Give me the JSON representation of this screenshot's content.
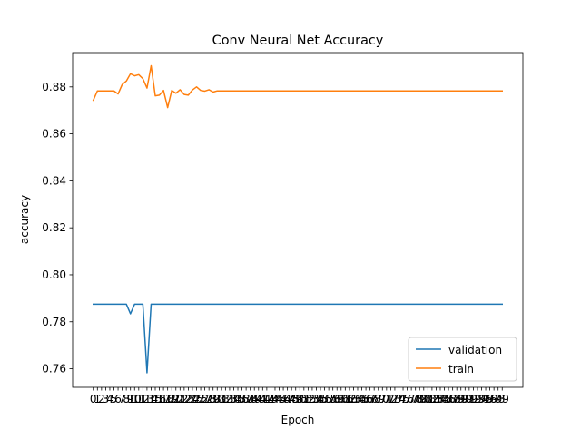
{
  "chart_data": {
    "type": "line",
    "title": "Conv Neural Net Accuracy",
    "xlabel": "Epoch",
    "ylabel": "accuracy",
    "x": [
      0,
      1,
      2,
      3,
      4,
      5,
      6,
      7,
      8,
      9,
      10,
      11,
      12,
      13,
      14,
      15,
      16,
      17,
      18,
      19,
      20,
      21,
      22,
      23,
      24,
      25,
      26,
      27,
      28,
      29,
      30,
      31,
      32,
      33,
      34,
      35,
      36,
      37,
      38,
      39,
      40,
      41,
      42,
      43,
      44,
      45,
      46,
      47,
      48,
      49,
      50,
      51,
      52,
      53,
      54,
      55,
      56,
      57,
      58,
      59,
      60,
      61,
      62,
      63,
      64,
      65,
      66,
      67,
      68,
      69,
      70,
      71,
      72,
      73,
      74,
      75,
      76,
      77,
      78,
      79,
      80,
      81,
      82,
      83,
      84,
      85,
      86,
      87,
      88,
      89,
      90,
      91,
      92,
      93,
      94,
      95,
      96,
      97,
      98,
      99
    ],
    "xlim": [
      -5,
      104
    ],
    "ylim": [
      0.7521,
      0.8946
    ],
    "yticks": [
      0.76,
      0.78,
      0.8,
      0.82,
      0.84,
      0.86,
      0.88
    ],
    "ytick_labels": [
      "0.76",
      "0.78",
      "0.80",
      "0.82",
      "0.84",
      "0.86",
      "0.88"
    ],
    "grid": false,
    "legend_position": "lower-right",
    "series": [
      {
        "name": "validation",
        "color": "#1f77b4",
        "values": [
          0.7875,
          0.7875,
          0.7875,
          0.7875,
          0.7875,
          0.7875,
          0.7875,
          0.7875,
          0.7875,
          0.7834,
          0.7875,
          0.7875,
          0.7875,
          0.7583,
          0.7875,
          0.7875,
          0.7875,
          0.7875,
          0.7875,
          0.7875,
          0.7875,
          0.7875,
          0.7875,
          0.7875,
          0.7875,
          0.7875,
          0.7875,
          0.7875,
          0.7875,
          0.7875,
          0.7875,
          0.7875,
          0.7875,
          0.7875,
          0.7875,
          0.7875,
          0.7875,
          0.7875,
          0.7875,
          0.7875,
          0.7875,
          0.7875,
          0.7875,
          0.7875,
          0.7875,
          0.7875,
          0.7875,
          0.7875,
          0.7875,
          0.7875,
          0.7875,
          0.7875,
          0.7875,
          0.7875,
          0.7875,
          0.7875,
          0.7875,
          0.7875,
          0.7875,
          0.7875,
          0.7875,
          0.7875,
          0.7875,
          0.7875,
          0.7875,
          0.7875,
          0.7875,
          0.7875,
          0.7875,
          0.7875,
          0.7875,
          0.7875,
          0.7875,
          0.7875,
          0.7875,
          0.7875,
          0.7875,
          0.7875,
          0.7875,
          0.7875,
          0.7875,
          0.7875,
          0.7875,
          0.7875,
          0.7875,
          0.7875,
          0.7875,
          0.7875,
          0.7875,
          0.7875,
          0.7875,
          0.7875,
          0.7875,
          0.7875,
          0.7875,
          0.7875,
          0.7875,
          0.7875,
          0.7875,
          0.7875
        ]
      },
      {
        "name": "train",
        "color": "#ff7f0e",
        "values": [
          0.8743,
          0.8783,
          0.8783,
          0.8783,
          0.8783,
          0.8783,
          0.877,
          0.881,
          0.8825,
          0.8856,
          0.8847,
          0.8852,
          0.8835,
          0.8795,
          0.889,
          0.8762,
          0.8765,
          0.8785,
          0.8712,
          0.8785,
          0.8773,
          0.8788,
          0.8768,
          0.8765,
          0.8787,
          0.88,
          0.8785,
          0.8782,
          0.8788,
          0.8778,
          0.8783,
          0.8783,
          0.8783,
          0.8783,
          0.8783,
          0.8783,
          0.8783,
          0.8783,
          0.8783,
          0.8783,
          0.8783,
          0.8783,
          0.8783,
          0.8783,
          0.8783,
          0.8783,
          0.8783,
          0.8783,
          0.8783,
          0.8783,
          0.8783,
          0.8783,
          0.8783,
          0.8783,
          0.8783,
          0.8783,
          0.8783,
          0.8783,
          0.8783,
          0.8783,
          0.8783,
          0.8783,
          0.8783,
          0.8783,
          0.8783,
          0.8783,
          0.8783,
          0.8783,
          0.8783,
          0.8783,
          0.8783,
          0.8783,
          0.8783,
          0.8783,
          0.8783,
          0.8783,
          0.8783,
          0.8783,
          0.8783,
          0.8783,
          0.8783,
          0.8783,
          0.8783,
          0.8783,
          0.8783,
          0.8783,
          0.8783,
          0.8783,
          0.8783,
          0.8783,
          0.8783,
          0.8783,
          0.8783,
          0.8783,
          0.8783,
          0.8783,
          0.8783,
          0.8783,
          0.8783,
          0.8783
        ]
      }
    ]
  }
}
